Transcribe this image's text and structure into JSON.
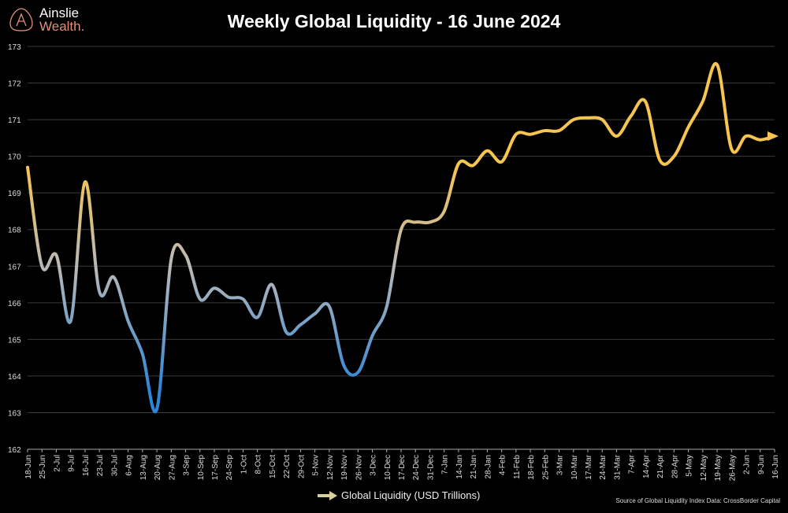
{
  "logo": {
    "line1": "Ainslie",
    "line2": "Wealth."
  },
  "chart_data": {
    "type": "line",
    "title": "Weekly Global Liquidity - 16 June 2024",
    "xlabel": "",
    "ylabel": "",
    "ylim": [
      162,
      173
    ],
    "yticks": [
      162,
      163,
      164,
      165,
      166,
      167,
      168,
      169,
      170,
      171,
      172,
      173
    ],
    "grid": true,
    "legend_placement": "bottom-center",
    "categories": [
      "18-Jun",
      "25-Jun",
      "2-Jul",
      "9-Jul",
      "16-Jul",
      "23-Jul",
      "30-Jul",
      "6-Aug",
      "13-Aug",
      "20-Aug",
      "27-Aug",
      "3-Sep",
      "10-Sep",
      "17-Sep",
      "24-Sep",
      "1-Oct",
      "8-Oct",
      "15-Oct",
      "22-Oct",
      "29-Oct",
      "5-Nov",
      "12-Nov",
      "19-Nov",
      "26-Nov",
      "3-Dec",
      "10-Dec",
      "17-Dec",
      "24-Dec",
      "31-Dec",
      "7-Jan",
      "14-Jan",
      "21-Jan",
      "28-Jan",
      "4-Feb",
      "11-Feb",
      "18-Feb",
      "25-Feb",
      "3-Mar",
      "10-Mar",
      "17-Mar",
      "24-Mar",
      "31-Mar",
      "7-Apr",
      "14-Apr",
      "21-Apr",
      "28-Apr",
      "5-May",
      "12-May",
      "19-May",
      "26-May",
      "2-Jun",
      "9-Jun",
      "16-Jun"
    ],
    "series": [
      {
        "name": "Global Liquidity (USD Trillions)",
        "values": [
          169.7,
          167.0,
          167.3,
          165.5,
          169.3,
          166.3,
          166.7,
          165.5,
          164.6,
          163.1,
          167.2,
          167.3,
          166.1,
          166.4,
          166.15,
          166.1,
          165.6,
          166.5,
          165.2,
          165.4,
          165.7,
          165.9,
          164.3,
          164.1,
          165.1,
          165.9,
          168.0,
          168.2,
          168.2,
          168.5,
          169.8,
          169.75,
          170.15,
          169.85,
          170.6,
          170.6,
          170.7,
          170.7,
          171.0,
          171.05,
          171.0,
          170.55,
          171.1,
          171.5,
          169.9,
          170.0,
          170.8,
          171.5,
          172.5,
          170.2,
          170.55,
          170.45,
          170.55
        ]
      }
    ],
    "colors": {
      "high": "#f5c451",
      "mid": "#b8b8b8",
      "low": "#2f86d6",
      "grid": "#3a3a3a",
      "axis": "#aaaaaa"
    }
  },
  "source": "Source of Global Liquidity Index Data: CrossBorder Capital"
}
